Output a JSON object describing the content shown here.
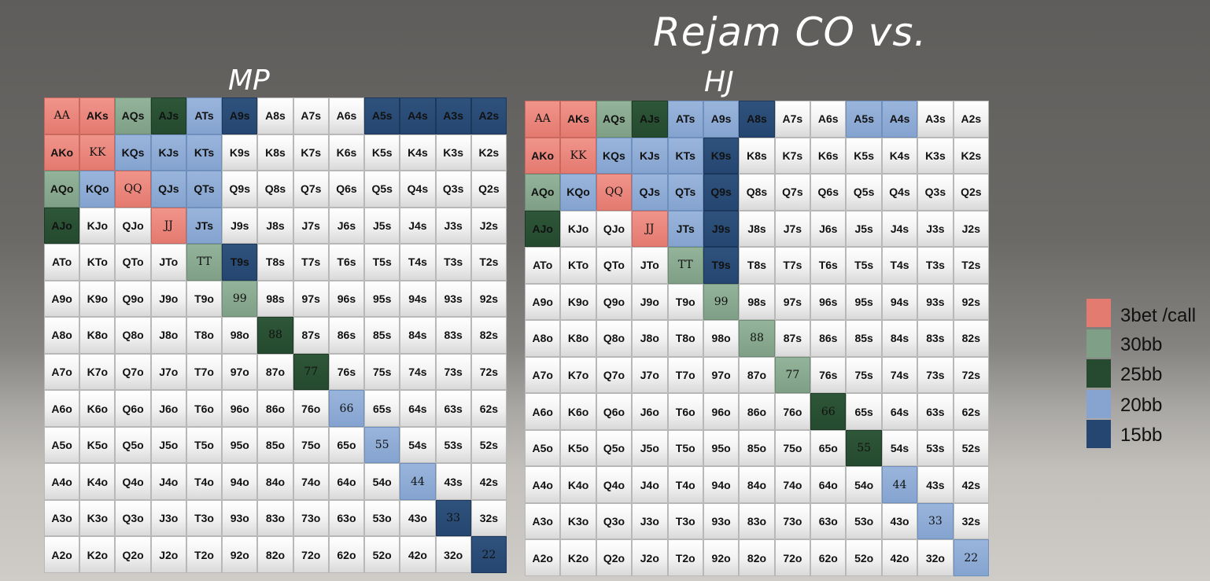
{
  "title": "Rejam CO vs.",
  "ranges": [
    {
      "name": "MP",
      "rows": [
        [
          "AA",
          "AKs",
          "AQs",
          "AJs",
          "ATs",
          "A9s",
          "A8s",
          "A7s",
          "A6s",
          "A5s",
          "A4s",
          "A3s",
          "A2s"
        ],
        [
          "AKo",
          "KK",
          "KQs",
          "KJs",
          "KTs",
          "K9s",
          "K8s",
          "K7s",
          "K6s",
          "K5s",
          "K4s",
          "K3s",
          "K2s"
        ],
        [
          "AQo",
          "KQo",
          "QQ",
          "QJs",
          "QTs",
          "Q9s",
          "Q8s",
          "Q7s",
          "Q6s",
          "Q5s",
          "Q4s",
          "Q3s",
          "Q2s"
        ],
        [
          "AJo",
          "KJo",
          "QJo",
          "JJ",
          "JTs",
          "J9s",
          "J8s",
          "J7s",
          "J6s",
          "J5s",
          "J4s",
          "J3s",
          "J2s"
        ],
        [
          "ATo",
          "KTo",
          "QTo",
          "JTo",
          "TT",
          "T9s",
          "T8s",
          "T7s",
          "T6s",
          "T5s",
          "T4s",
          "T3s",
          "T2s"
        ],
        [
          "A9o",
          "K9o",
          "Q9o",
          "J9o",
          "T9o",
          "99",
          "98s",
          "97s",
          "96s",
          "95s",
          "94s",
          "93s",
          "92s"
        ],
        [
          "A8o",
          "K8o",
          "Q8o",
          "J8o",
          "T8o",
          "98o",
          "88",
          "87s",
          "86s",
          "85s",
          "84s",
          "83s",
          "82s"
        ],
        [
          "A7o",
          "K7o",
          "Q7o",
          "J7o",
          "T7o",
          "97o",
          "87o",
          "77",
          "76s",
          "75s",
          "74s",
          "73s",
          "72s"
        ],
        [
          "A6o",
          "K6o",
          "Q6o",
          "J6o",
          "T6o",
          "96o",
          "86o",
          "76o",
          "66",
          "65s",
          "64s",
          "63s",
          "62s"
        ],
        [
          "A5o",
          "K5o",
          "Q5o",
          "J5o",
          "T5o",
          "95o",
          "85o",
          "75o",
          "65o",
          "55",
          "54s",
          "53s",
          "52s"
        ],
        [
          "A4o",
          "K4o",
          "Q4o",
          "J4o",
          "T4o",
          "94o",
          "84o",
          "74o",
          "64o",
          "54o",
          "44",
          "43s",
          "42s"
        ],
        [
          "A3o",
          "K3o",
          "Q3o",
          "J3o",
          "T3o",
          "93o",
          "83o",
          "73o",
          "63o",
          "53o",
          "43o",
          "33",
          "32s"
        ],
        [
          "A2o",
          "K2o",
          "Q2o",
          "J2o",
          "T2o",
          "92o",
          "82o",
          "72o",
          "62o",
          "52o",
          "42o",
          "32o",
          "22"
        ]
      ],
      "colors": [
        [
          "r",
          "r",
          "lg",
          "dg",
          "lb",
          "db",
          "w",
          "w",
          "w",
          "db",
          "db",
          "db",
          "db"
        ],
        [
          "r",
          "r",
          "lb",
          "lb",
          "lb",
          "w",
          "w",
          "w",
          "w",
          "w",
          "w",
          "w",
          "w"
        ],
        [
          "lg",
          "lb",
          "r",
          "lb",
          "lb",
          "w",
          "w",
          "w",
          "w",
          "w",
          "w",
          "w",
          "w"
        ],
        [
          "dg",
          "w",
          "w",
          "r",
          "lb",
          "w",
          "w",
          "w",
          "w",
          "w",
          "w",
          "w",
          "w"
        ],
        [
          "w",
          "w",
          "w",
          "w",
          "lg",
          "db",
          "w",
          "w",
          "w",
          "w",
          "w",
          "w",
          "w"
        ],
        [
          "w",
          "w",
          "w",
          "w",
          "w",
          "lg",
          "w",
          "w",
          "w",
          "w",
          "w",
          "w",
          "w"
        ],
        [
          "w",
          "w",
          "w",
          "w",
          "w",
          "w",
          "dg",
          "w",
          "w",
          "w",
          "w",
          "w",
          "w"
        ],
        [
          "w",
          "w",
          "w",
          "w",
          "w",
          "w",
          "w",
          "dg",
          "w",
          "w",
          "w",
          "w",
          "w"
        ],
        [
          "w",
          "w",
          "w",
          "w",
          "w",
          "w",
          "w",
          "w",
          "lb",
          "w",
          "w",
          "w",
          "w"
        ],
        [
          "w",
          "w",
          "w",
          "w",
          "w",
          "w",
          "w",
          "w",
          "w",
          "lb",
          "w",
          "w",
          "w"
        ],
        [
          "w",
          "w",
          "w",
          "w",
          "w",
          "w",
          "w",
          "w",
          "w",
          "w",
          "lb",
          "w",
          "w"
        ],
        [
          "w",
          "w",
          "w",
          "w",
          "w",
          "w",
          "w",
          "w",
          "w",
          "w",
          "w",
          "db",
          "w"
        ],
        [
          "w",
          "w",
          "w",
          "w",
          "w",
          "w",
          "w",
          "w",
          "w",
          "w",
          "w",
          "w",
          "db"
        ]
      ]
    },
    {
      "name": "HJ",
      "rows": [
        [
          "AA",
          "AKs",
          "AQs",
          "AJs",
          "ATs",
          "A9s",
          "A8s",
          "A7s",
          "A6s",
          "A5s",
          "A4s",
          "A3s",
          "A2s"
        ],
        [
          "AKo",
          "KK",
          "KQs",
          "KJs",
          "KTs",
          "K9s",
          "K8s",
          "K7s",
          "K6s",
          "K5s",
          "K4s",
          "K3s",
          "K2s"
        ],
        [
          "AQo",
          "KQo",
          "QQ",
          "QJs",
          "QTs",
          "Q9s",
          "Q8s",
          "Q7s",
          "Q6s",
          "Q5s",
          "Q4s",
          "Q3s",
          "Q2s"
        ],
        [
          "AJo",
          "KJo",
          "QJo",
          "JJ",
          "JTs",
          "J9s",
          "J8s",
          "J7s",
          "J6s",
          "J5s",
          "J4s",
          "J3s",
          "J2s"
        ],
        [
          "ATo",
          "KTo",
          "QTo",
          "JTo",
          "TT",
          "T9s",
          "T8s",
          "T7s",
          "T6s",
          "T5s",
          "T4s",
          "T3s",
          "T2s"
        ],
        [
          "A9o",
          "K9o",
          "Q9o",
          "J9o",
          "T9o",
          "99",
          "98s",
          "97s",
          "96s",
          "95s",
          "94s",
          "93s",
          "92s"
        ],
        [
          "A8o",
          "K8o",
          "Q8o",
          "J8o",
          "T8o",
          "98o",
          "88",
          "87s",
          "86s",
          "85s",
          "84s",
          "83s",
          "82s"
        ],
        [
          "A7o",
          "K7o",
          "Q7o",
          "J7o",
          "T7o",
          "97o",
          "87o",
          "77",
          "76s",
          "75s",
          "74s",
          "73s",
          "72s"
        ],
        [
          "A6o",
          "K6o",
          "Q6o",
          "J6o",
          "T6o",
          "96o",
          "86o",
          "76o",
          "66",
          "65s",
          "64s",
          "63s",
          "62s"
        ],
        [
          "A5o",
          "K5o",
          "Q5o",
          "J5o",
          "T5o",
          "95o",
          "85o",
          "75o",
          "65o",
          "55",
          "54s",
          "53s",
          "52s"
        ],
        [
          "A4o",
          "K4o",
          "Q4o",
          "J4o",
          "T4o",
          "94o",
          "84o",
          "74o",
          "64o",
          "54o",
          "44",
          "43s",
          "42s"
        ],
        [
          "A3o",
          "K3o",
          "Q3o",
          "J3o",
          "T3o",
          "93o",
          "83o",
          "73o",
          "63o",
          "53o",
          "43o",
          "33",
          "32s"
        ],
        [
          "A2o",
          "K2o",
          "Q2o",
          "J2o",
          "T2o",
          "92o",
          "82o",
          "72o",
          "62o",
          "52o",
          "42o",
          "32o",
          "22"
        ]
      ],
      "colors": [
        [
          "r",
          "r",
          "lg",
          "dg",
          "lb",
          "lb",
          "db",
          "w",
          "w",
          "lb",
          "lb",
          "w",
          "w"
        ],
        [
          "r",
          "r",
          "lb",
          "lb",
          "lb",
          "db",
          "w",
          "w",
          "w",
          "w",
          "w",
          "w",
          "w"
        ],
        [
          "lg",
          "lb",
          "r",
          "lb",
          "lb",
          "db",
          "w",
          "w",
          "w",
          "w",
          "w",
          "w",
          "w"
        ],
        [
          "dg",
          "w",
          "w",
          "r",
          "lb",
          "db",
          "w",
          "w",
          "w",
          "w",
          "w",
          "w",
          "w"
        ],
        [
          "w",
          "w",
          "w",
          "w",
          "lg",
          "db",
          "w",
          "w",
          "w",
          "w",
          "w",
          "w",
          "w"
        ],
        [
          "w",
          "w",
          "w",
          "w",
          "w",
          "lg",
          "w",
          "w",
          "w",
          "w",
          "w",
          "w",
          "w"
        ],
        [
          "w",
          "w",
          "w",
          "w",
          "w",
          "w",
          "lg",
          "w",
          "w",
          "w",
          "w",
          "w",
          "w"
        ],
        [
          "w",
          "w",
          "w",
          "w",
          "w",
          "w",
          "w",
          "lg",
          "w",
          "w",
          "w",
          "w",
          "w"
        ],
        [
          "w",
          "w",
          "w",
          "w",
          "w",
          "w",
          "w",
          "w",
          "dg",
          "w",
          "w",
          "w",
          "w"
        ],
        [
          "w",
          "w",
          "w",
          "w",
          "w",
          "w",
          "w",
          "w",
          "w",
          "dg",
          "w",
          "w",
          "w"
        ],
        [
          "w",
          "w",
          "w",
          "w",
          "w",
          "w",
          "w",
          "w",
          "w",
          "w",
          "lb",
          "w",
          "w"
        ],
        [
          "w",
          "w",
          "w",
          "w",
          "w",
          "w",
          "w",
          "w",
          "w",
          "w",
          "w",
          "lb",
          "w"
        ],
        [
          "w",
          "w",
          "w",
          "w",
          "w",
          "w",
          "w",
          "w",
          "w",
          "w",
          "w",
          "w",
          "lb"
        ]
      ]
    }
  ],
  "legend": [
    {
      "label": "3bet /call",
      "color": "#e47b70"
    },
    {
      "label": "30bb",
      "color": "#809f87"
    },
    {
      "label": "25bb",
      "color": "#254a2f"
    },
    {
      "label": "20bb",
      "color": "#86a4cf"
    },
    {
      "label": "15bb",
      "color": "#244670"
    }
  ]
}
